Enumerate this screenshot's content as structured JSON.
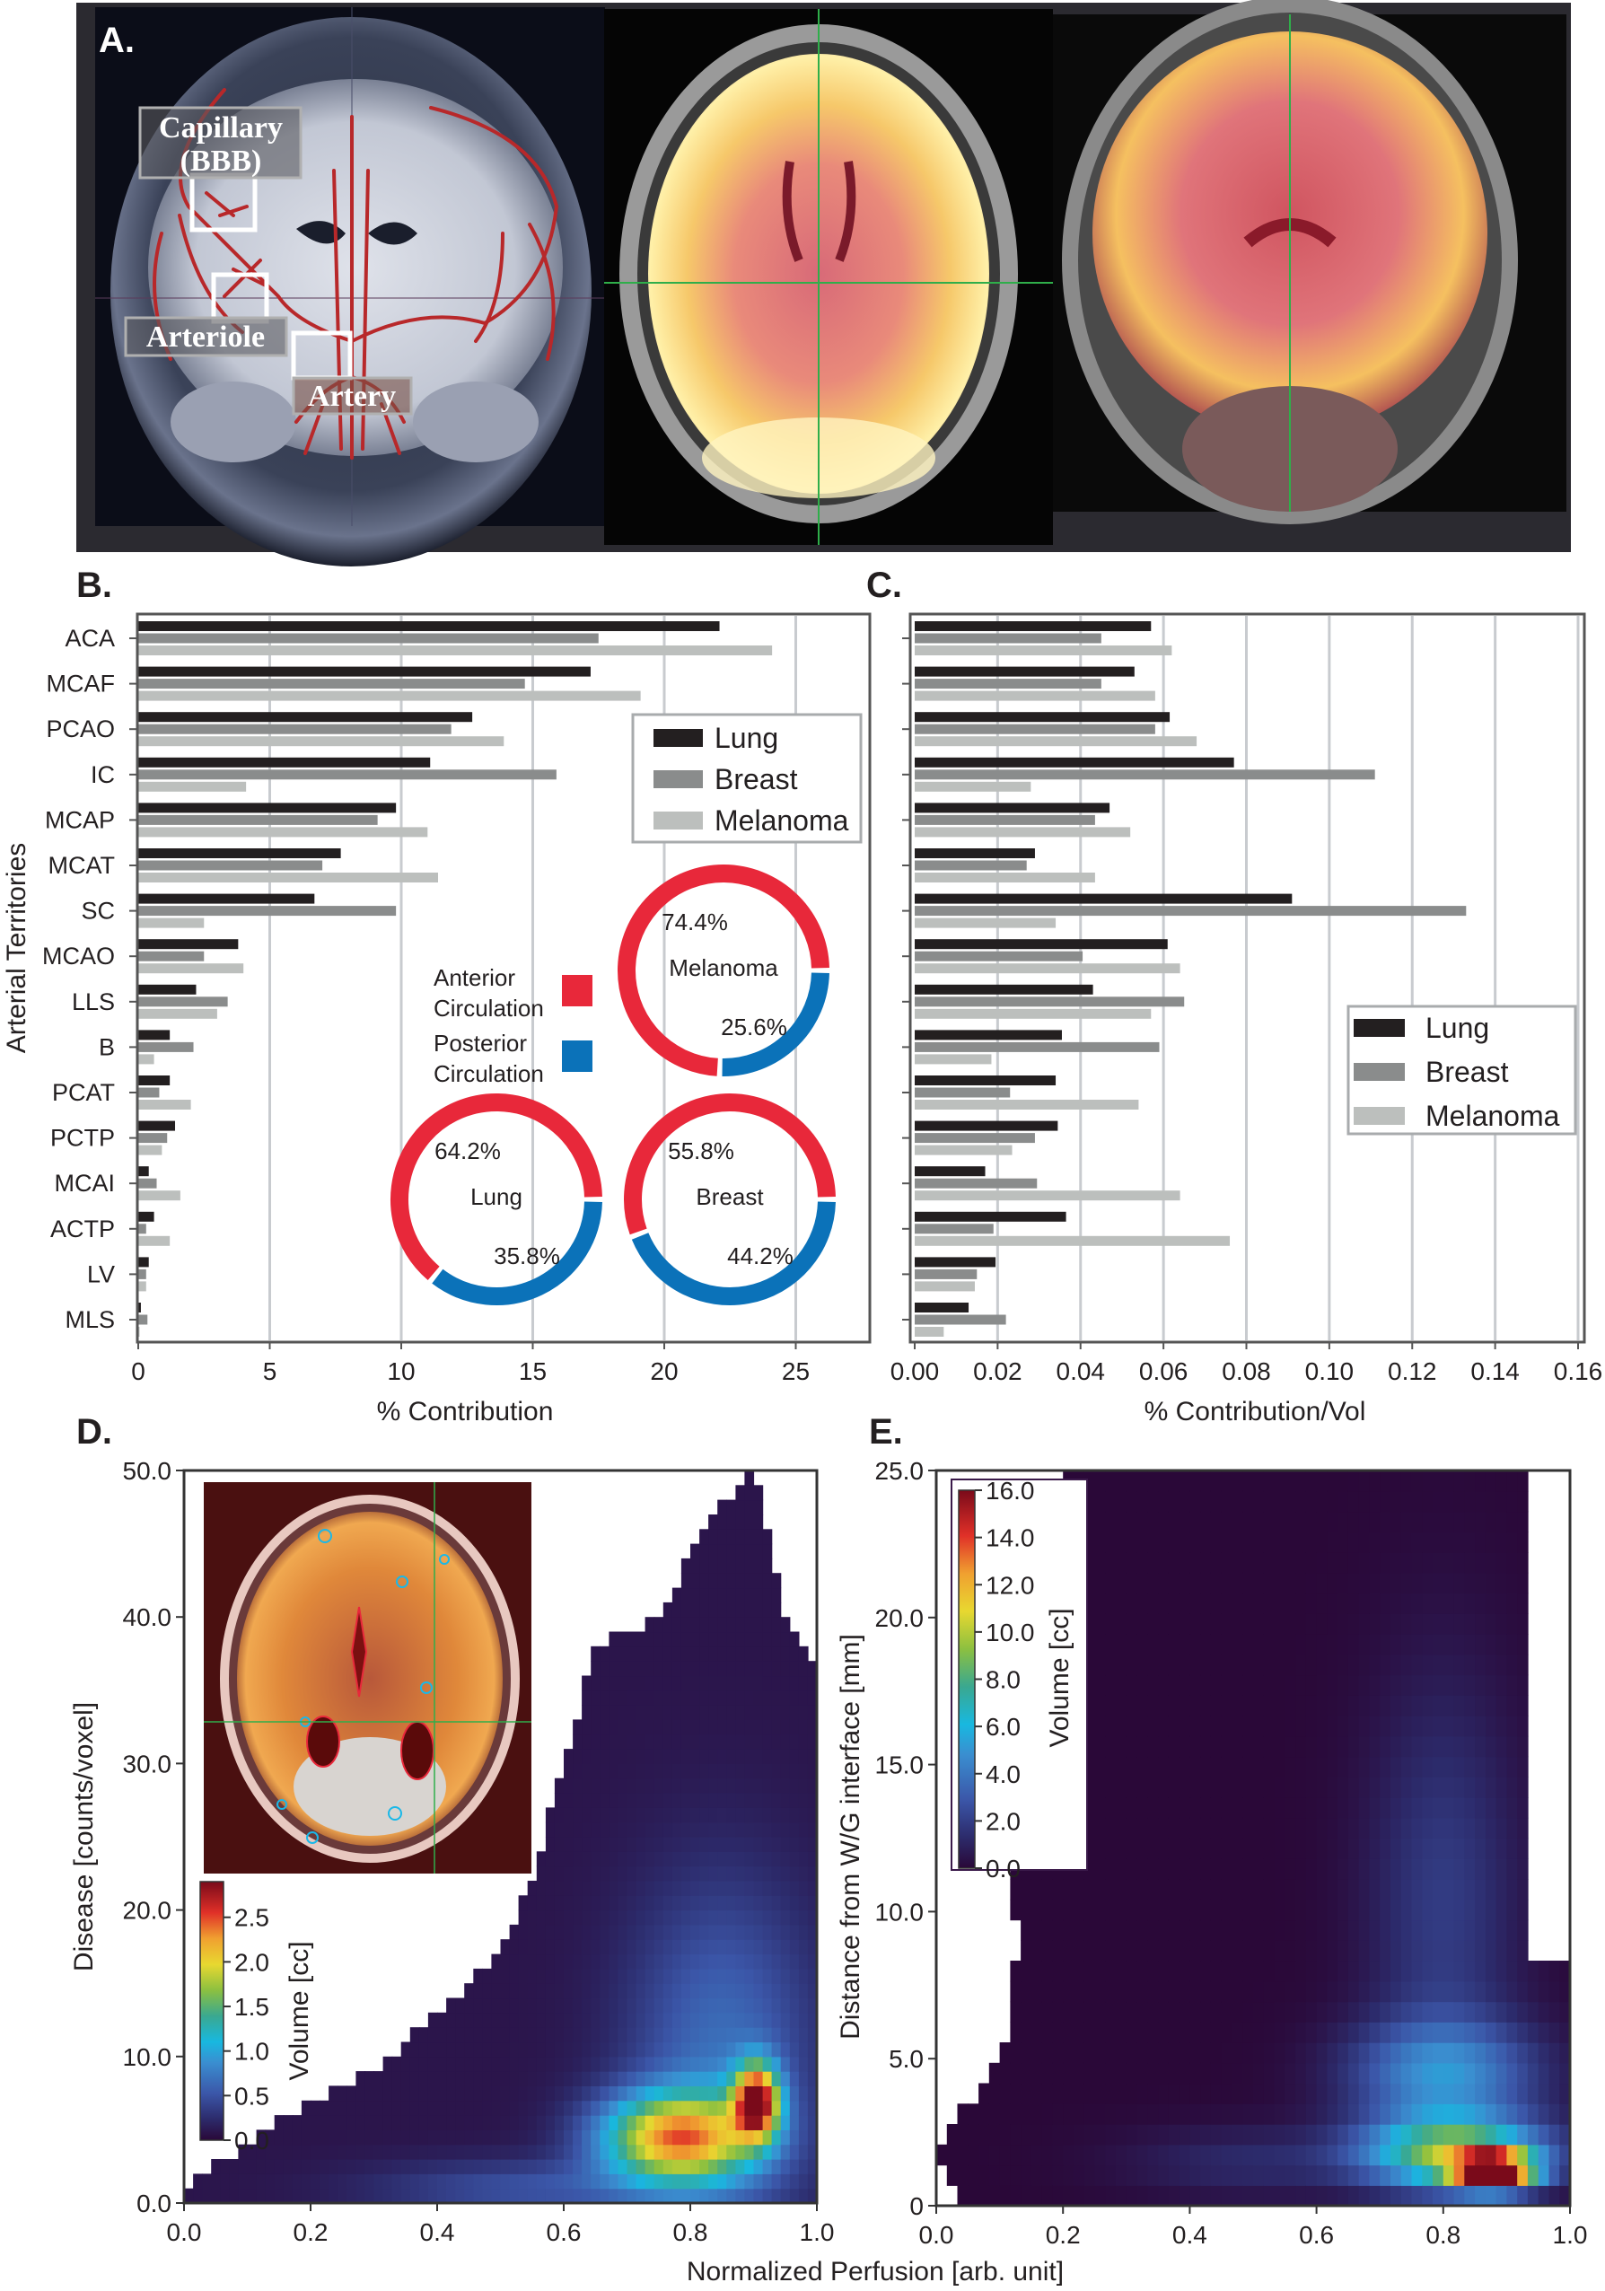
{
  "panel_labels": {
    "a": "A.",
    "b": "B.",
    "c": "C.",
    "d": "D.",
    "e": "E."
  },
  "panel_a": {
    "labels": {
      "capillary_line1": "Capillary",
      "capillary_line2": "(BBB)",
      "arteriole": "Arteriole",
      "artery": "Artery"
    },
    "colors": {
      "vessel": "#b8282a",
      "crosshair": "#2fae4a"
    }
  },
  "chart_data": [
    {
      "id": "B",
      "type": "bar",
      "orientation": "horizontal",
      "ylabel": "Arterial Territories",
      "xlabel": "% Contribution",
      "xlim": [
        0,
        28
      ],
      "xticks": [
        "0",
        "5",
        "10",
        "15",
        "20",
        "25"
      ],
      "xtick_values": [
        0,
        5,
        10,
        15,
        20,
        25
      ],
      "grid": "vertical",
      "legend_placement": "upper-right",
      "categories": [
        "ACA",
        "MCAF",
        "PCAO",
        "IC",
        "MCAP",
        "MCAT",
        "SC",
        "MCAO",
        "LLS",
        "B",
        "PCAT",
        "PCTP",
        "MCAI",
        "ACTP",
        "LV",
        "MLS"
      ],
      "series": [
        {
          "name": "Lung",
          "color": "#231f20",
          "values": [
            22.1,
            17.2,
            12.7,
            11.1,
            9.8,
            7.7,
            6.7,
            3.8,
            2.2,
            1.2,
            1.2,
            1.4,
            0.4,
            0.6,
            0.4,
            0.1
          ]
        },
        {
          "name": "Breast",
          "color": "#8a8c8c",
          "values": [
            17.5,
            14.7,
            11.9,
            15.9,
            9.1,
            7.0,
            9.8,
            2.5,
            3.4,
            2.1,
            0.8,
            1.1,
            0.7,
            0.3,
            0.3,
            0.35
          ]
        },
        {
          "name": "Melanoma",
          "color": "#bcbfbd",
          "values": [
            24.1,
            19.1,
            13.9,
            4.1,
            11.0,
            11.4,
            2.5,
            4.0,
            3.0,
            0.6,
            2.0,
            0.9,
            1.6,
            1.2,
            0.3,
            0.05
          ]
        }
      ],
      "donuts": {
        "legend": [
          {
            "line1": "Anterior",
            "line2": "Circulation",
            "color": "#e8283a"
          },
          {
            "line1": "Posterior",
            "line2": "Circulation",
            "color": "#0b72b9"
          }
        ],
        "items": [
          {
            "name": "Melanoma",
            "anterior": 74.4,
            "posterior": 25.6,
            "anterior_label": "74.4%",
            "posterior_label": "25.6%"
          },
          {
            "name": "Lung",
            "anterior": 64.2,
            "posterior": 35.8,
            "anterior_label": "64.2%",
            "posterior_label": "35.8%"
          },
          {
            "name": "Breast",
            "anterior": 55.8,
            "posterior": 44.2,
            "anterior_label": "55.8%",
            "posterior_label": "44.2%"
          }
        ]
      }
    },
    {
      "id": "C",
      "type": "bar",
      "orientation": "horizontal",
      "xlabel": "% Contribution/Vol",
      "xlim": [
        0,
        0.16
      ],
      "xticks": [
        "0.00",
        "0.02",
        "0.04",
        "0.06",
        "0.08",
        "0.10",
        "0.12",
        "0.14",
        "0.16"
      ],
      "xtick_values": [
        0,
        0.02,
        0.04,
        0.06,
        0.08,
        0.1,
        0.12,
        0.14,
        0.16
      ],
      "grid": "vertical",
      "legend_placement": "center-right",
      "categories": [
        "ACA",
        "MCAF",
        "PCAO",
        "IC",
        "MCAP",
        "MCAT",
        "SC",
        "MCAO",
        "LLS",
        "B",
        "PCAT",
        "PCTP",
        "MCAI",
        "ACTP",
        "LV",
        "MLS"
      ],
      "series": [
        {
          "name": "Lung",
          "color": "#231f20",
          "values": [
            0.057,
            0.053,
            0.0615,
            0.077,
            0.047,
            0.029,
            0.091,
            0.061,
            0.043,
            0.0355,
            0.034,
            0.0345,
            0.017,
            0.0365,
            0.0195,
            0.013
          ]
        },
        {
          "name": "Breast",
          "color": "#8a8c8c",
          "values": [
            0.045,
            0.045,
            0.058,
            0.111,
            0.0435,
            0.027,
            0.133,
            0.0405,
            0.065,
            0.059,
            0.023,
            0.029,
            0.0295,
            0.019,
            0.015,
            0.022
          ]
        },
        {
          "name": "Melanoma",
          "color": "#bcbfbd",
          "values": [
            0.062,
            0.058,
            0.068,
            0.028,
            0.052,
            0.0435,
            0.034,
            0.064,
            0.057,
            0.0185,
            0.054,
            0.0235,
            0.064,
            0.076,
            0.0145,
            0.007
          ]
        }
      ]
    },
    {
      "id": "D",
      "type": "heatmap",
      "xlabel": "Normalized Perfusion [arb. unit]",
      "ylabel": "Disease [counts/voxel]",
      "xlim": [
        0,
        1
      ],
      "ylim": [
        0,
        50
      ],
      "xticks": [
        "0.0",
        "0.2",
        "0.4",
        "0.6",
        "0.8",
        "1.0"
      ],
      "yticks": [
        "0.0",
        "10.0",
        "20.0",
        "30.0",
        "40.0",
        "50.0"
      ],
      "colorbar": {
        "label": "Volume [cc]",
        "range": [
          0,
          2.9
        ],
        "ticks": [
          "0.0",
          "0.5",
          "1.0",
          "1.5",
          "2.0",
          "2.5"
        ],
        "tick_values": [
          0,
          0.5,
          1.0,
          1.5,
          2.0,
          2.5
        ]
      },
      "peak": {
        "x": 0.9,
        "y": 7
      }
    },
    {
      "id": "E",
      "type": "heatmap",
      "xlabel": "Normalized Perfusion [arb. unit]",
      "ylabel": "Distance from W/G interface  [mm]",
      "xlim": [
        0,
        1
      ],
      "ylim": [
        0,
        25
      ],
      "xticks": [
        "0.0",
        "0.2",
        "0.4",
        "0.6",
        "0.8",
        "1.0"
      ],
      "yticks": [
        "0",
        "5.0",
        "10.0",
        "15.0",
        "20.0",
        "25.0"
      ],
      "colorbar": {
        "label": "Volume [cc]",
        "range": [
          0,
          16
        ],
        "ticks": [
          "0.0",
          "2.0",
          "4.0",
          "6.0",
          "8.0",
          "10.0",
          "12.0",
          "14.0",
          "16.0"
        ],
        "tick_values": [
          0,
          2,
          4,
          6,
          8,
          10,
          12,
          14,
          16
        ]
      },
      "peak": {
        "x": 0.88,
        "y": 1.2
      }
    }
  ],
  "shared_xlabel": "Normalized Perfusion [arb. unit]",
  "colormap": [
    "#2a0838",
    "#2c2a6a",
    "#3b56a8",
    "#3a8ed0",
    "#18b8e0",
    "#3aa890",
    "#8cc040",
    "#e8d830",
    "#f0a030",
    "#e03028",
    "#7a0a1a"
  ]
}
